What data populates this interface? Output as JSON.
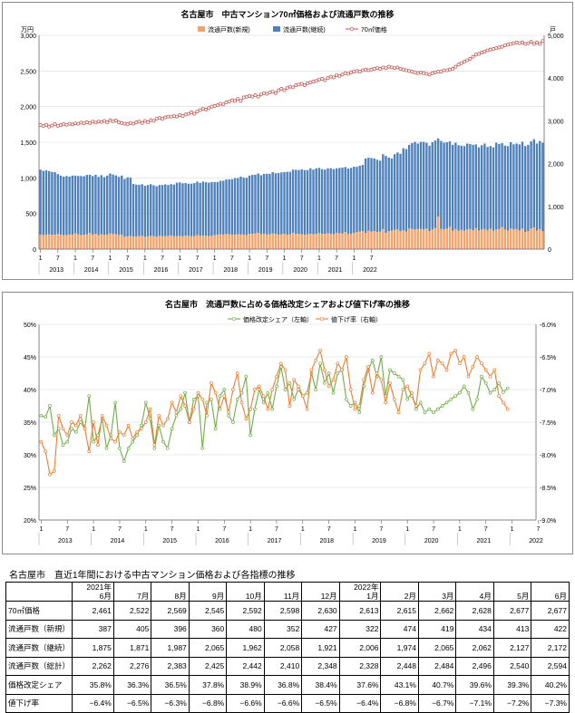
{
  "chart_data": [
    {
      "type": "bar+line",
      "title": "名古屋市　中古マンション70㎡価格および流通戸数の推移",
      "left_axis_unit": "万円",
      "right_axis_unit": "戸",
      "ylim_left": [
        0,
        3000
      ],
      "yticks_left": [
        "0",
        "500",
        "1,000",
        "1,500",
        "2,000",
        "2,500",
        "3,000"
      ],
      "ylim_right": [
        0,
        5000
      ],
      "yticks_right": [
        "0",
        "1,000",
        "2,000",
        "3,000",
        "4,000",
        "5,000"
      ],
      "legend": [
        "流通戸数(新規)",
        "流通戸数(継続)",
        "70㎡価格"
      ],
      "legend_position": "top",
      "x_month_labels": [
        "1",
        "7",
        "1",
        "7",
        "1",
        "7",
        "1",
        "7",
        "1",
        "7",
        "1",
        "7",
        "1",
        "7",
        "1",
        "7",
        "1",
        "7",
        "1",
        "7"
      ],
      "x_year_labels": [
        "2013",
        "2014",
        "2015",
        "2016",
        "2017",
        "2018",
        "2019",
        "2020",
        "2021",
        "2022"
      ],
      "colors": {
        "new": "#f4a46a",
        "continuing": "#4f81bd",
        "price": "#c0504d"
      },
      "series": [
        {
          "name": "流通戸数(新規)",
          "axis": "right",
          "values": [
            340,
            330,
            335,
            345,
            335,
            340,
            355,
            340,
            325,
            330,
            345,
            340,
            370,
            350,
            330,
            335,
            345,
            380,
            340,
            360,
            330,
            350,
            335,
            340,
            370,
            355,
            345,
            330,
            340,
            290,
            300,
            310,
            295,
            300,
            305,
            310,
            290,
            300,
            310,
            305,
            290,
            310,
            300,
            305,
            310,
            320,
            300,
            305,
            310,
            300,
            315,
            310,
            300,
            305,
            330,
            310,
            320,
            315,
            305,
            310,
            330,
            340,
            350,
            340,
            360,
            350,
            335,
            340,
            350,
            345,
            340,
            330,
            360,
            355,
            370,
            380,
            350,
            360,
            345,
            350,
            370,
            355,
            340,
            345,
            360,
            340,
            350,
            380,
            355,
            360,
            345,
            340,
            350,
            360,
            350,
            360,
            380,
            360,
            360,
            370,
            360,
            350,
            380,
            370,
            365,
            400,
            355,
            360,
            380,
            395,
            410,
            420,
            380,
            430,
            410,
            420,
            400,
            410,
            470,
            380,
            420,
            430,
            450,
            460,
            420,
            440,
            410,
            480,
            470,
            460,
            470,
            470,
            460,
            480,
            420,
            460,
            490,
            760,
            470,
            460,
            480,
            520,
            430,
            470,
            430,
            450,
            430,
            460,
            470,
            440,
            490,
            430,
            460,
            470,
            440,
            480,
            430,
            460,
            470,
            520,
            460,
            430,
            480,
            460,
            470,
            440,
            480,
            400,
            420,
            480,
            510,
            430,
            470,
            420
          ]
        },
        {
          "name": "流通戸数(継続)",
          "axis": "right",
          "values": [
            1520,
            1500,
            1510,
            1480,
            1470,
            1460,
            1400,
            1380,
            1370,
            1380,
            1350,
            1380,
            1350,
            1360,
            1380,
            1370,
            1390,
            1360,
            1370,
            1380,
            1360,
            1380,
            1350,
            1380,
            1400,
            1390,
            1380,
            1360,
            1380,
            1350,
            1380,
            1360,
            1230,
            1210,
            1200,
            1210,
            1190,
            1200,
            1210,
            1190,
            1180,
            1190,
            1200,
            1210,
            1190,
            1200,
            1210,
            1250,
            1250,
            1240,
            1230,
            1220,
            1230,
            1240,
            1250,
            1240,
            1260,
            1250,
            1250,
            1260,
            1240,
            1230,
            1250,
            1260,
            1270,
            1280,
            1300,
            1320,
            1310,
            1350,
            1330,
            1340,
            1360,
            1380,
            1370,
            1390,
            1380,
            1400,
            1420,
            1410,
            1430,
            1420,
            1440,
            1450,
            1440,
            1470,
            1460,
            1480,
            1500,
            1490,
            1520,
            1510,
            1500,
            1530,
            1510,
            1530,
            1520,
            1510,
            1500,
            1520,
            1530,
            1520,
            1510,
            1530,
            1540,
            1520,
            1530,
            1540,
            1550,
            1530,
            1540,
            1550,
            1740,
            1710,
            1720,
            1700,
            1690,
            1660,
            1750,
            1800,
            1720,
            1690,
            1770,
            1800,
            1810,
            1920,
            1930,
            1960,
            2010,
            2050,
            2000,
            2040,
            2050,
            2010,
            2000,
            2040,
            2050,
            1830,
            2060,
            2030,
            2020,
            2000,
            2010,
            2020,
            2000,
            1970,
            1980,
            2010,
            1990,
            2000,
            1960,
            1950,
            1970,
            2000,
            1950,
            1930,
            1950,
            2030,
            1990,
            1960,
            1960,
            1980,
            2020,
            1990,
            2000,
            2010,
            2030,
            2010,
            2020,
            2040,
            2060,
            2040,
            2060,
            2070,
            2110,
            2040,
            2080,
            2140
          ]
        },
        {
          "name": "70㎡価格",
          "axis": "left",
          "values": [
            1740,
            1730,
            1745,
            1720,
            1735,
            1755,
            1730,
            1740,
            1755,
            1745,
            1760,
            1750,
            1765,
            1760,
            1775,
            1765,
            1780,
            1770,
            1790,
            1775,
            1790,
            1785,
            1800,
            1780,
            1810,
            1795,
            1805,
            1780,
            1770,
            1760,
            1755,
            1770,
            1760,
            1780,
            1790,
            1770,
            1800,
            1780,
            1810,
            1800,
            1830,
            1840,
            1830,
            1850,
            1860,
            1860,
            1870,
            1860,
            1880,
            1870,
            1890,
            1900,
            1920,
            1900,
            1930,
            1950,
            1970,
            1960,
            1980,
            2000,
            2010,
            2020,
            2040,
            2030,
            2060,
            2070,
            2090,
            2080,
            2110,
            2080,
            2130,
            2140,
            2150,
            2140,
            2160,
            2140,
            2170,
            2190,
            2180,
            2200,
            2210,
            2190,
            2230,
            2250,
            2230,
            2260,
            2280,
            2270,
            2300,
            2310,
            2320,
            2300,
            2330,
            2340,
            2350,
            2360,
            2380,
            2390,
            2370,
            2400,
            2420,
            2410,
            2440,
            2430,
            2450,
            2470,
            2460,
            2480,
            2490,
            2500,
            2490,
            2510,
            2520,
            2510,
            2520,
            2530,
            2540,
            2530,
            2550,
            2540,
            2560,
            2550,
            2540,
            2550,
            2530,
            2520,
            2510,
            2500,
            2490,
            2480,
            2470,
            2480,
            2470,
            2460,
            2450,
            2470,
            2480,
            2490,
            2490,
            2510,
            2510,
            2520,
            2530,
            2560,
            2590,
            2610,
            2630,
            2650,
            2670,
            2700,
            2730,
            2740,
            2760,
            2770,
            2790,
            2800,
            2810,
            2820,
            2830,
            2840,
            2860,
            2870,
            2880,
            2890,
            2900,
            2890,
            2900,
            2880,
            2890,
            2910,
            2880,
            2900,
            2880,
            2920
          ]
        }
      ]
    },
    {
      "type": "line",
      "title": "名古屋市　流通戸数に占める価格改定シェアおよび値下げ率の推移",
      "ylim_left": [
        20,
        50
      ],
      "yticks_left": [
        "20%",
        "25%",
        "30%",
        "35%",
        "40%",
        "45%",
        "50%"
      ],
      "ylim_right": [
        -9.0,
        -6.0
      ],
      "yticks_right": [
        "-9.0%",
        "-8.5%",
        "-8.0%",
        "-7.5%",
        "-7.0%",
        "-6.5%",
        "-6.0%"
      ],
      "legend": [
        "価格改定シェア（左軸）",
        "値下げ率（右軸）"
      ],
      "legend_position": "top",
      "x_month_labels": [
        "1",
        "7",
        "1",
        "7",
        "1",
        "7",
        "1",
        "7",
        "1",
        "7",
        "1",
        "7",
        "1",
        "7",
        "1",
        "7",
        "1",
        "7",
        "1",
        "7"
      ],
      "x_year_labels": [
        "2013",
        "2014",
        "2015",
        "2016",
        "2017",
        "2018",
        "2019",
        "2020",
        "2021",
        "2022"
      ],
      "colors": {
        "share": "#70ad47",
        "cut": "#ed7d31"
      },
      "series": [
        {
          "name": "価格改定シェア（左軸）",
          "axis": "left",
          "values": [
            36.0,
            35.8,
            37.5,
            33.0,
            34.0,
            31.5,
            32.0,
            34.0,
            33.5,
            35.0,
            34.0,
            39.0,
            32.0,
            33.0,
            35.5,
            31.0,
            33.0,
            38.0,
            31.0,
            29.0,
            31.0,
            32.0,
            33.0,
            34.5,
            38.0,
            35.5,
            31.0,
            34.5,
            32.0,
            31.0,
            34.0,
            36.0,
            37.0,
            39.5,
            35.0,
            38.5,
            39.0,
            31.0,
            38.0,
            38.5,
            34.0,
            39.0,
            40.0,
            36.0,
            35.0,
            38.5,
            39.5,
            42.0,
            33.0,
            37.0,
            40.0,
            38.0,
            39.5,
            37.0,
            40.5,
            43.5,
            40.0,
            41.0,
            38.5,
            40.0,
            39.0,
            39.5,
            42.5,
            40.0,
            44.0,
            41.0,
            42.5,
            39.5,
            42.5,
            43.0,
            38.5,
            37.5,
            38.0,
            36.5,
            40.5,
            43.0,
            44.5,
            42.0,
            45.0,
            39.0,
            43.0,
            42.5,
            42.0,
            41.5,
            38.5,
            39.5,
            37.0,
            38.0,
            36.5,
            37.0,
            36.5,
            37.0,
            37.5,
            38.0,
            38.5,
            39.0,
            39.5,
            40.5,
            39.5,
            37.0,
            38.5,
            42.0,
            41.0,
            39.5,
            40.0,
            41.0,
            39.6,
            40.2
          ]
        },
        {
          "name": "値下げ率（右軸）",
          "axis": "right",
          "values": [
            -7.8,
            -7.95,
            -8.3,
            -8.25,
            -7.4,
            -7.6,
            -7.7,
            -7.5,
            -7.55,
            -7.4,
            -7.6,
            -7.95,
            -7.5,
            -7.85,
            -7.4,
            -7.55,
            -7.75,
            -7.8,
            -7.65,
            -7.7,
            -7.55,
            -7.75,
            -7.65,
            -7.6,
            -7.5,
            -7.3,
            -7.85,
            -7.4,
            -7.55,
            -7.45,
            -7.2,
            -7.35,
            -7.1,
            -7.25,
            -7.5,
            -7.3,
            -7.05,
            -7.15,
            -7.4,
            -6.9,
            -7.05,
            -7.3,
            -7.1,
            -7.35,
            -7.0,
            -6.75,
            -7.2,
            -7.45,
            -7.3,
            -7.0,
            -6.95,
            -7.1,
            -7.3,
            -7.0,
            -6.8,
            -6.6,
            -6.7,
            -7.25,
            -6.85,
            -6.95,
            -7.1,
            -7.3,
            -6.7,
            -6.55,
            -6.4,
            -6.7,
            -6.95,
            -6.85,
            -6.6,
            -6.7,
            -6.5,
            -7.0,
            -7.3,
            -7.25,
            -6.85,
            -6.65,
            -7.05,
            -6.75,
            -6.85,
            -7.2,
            -6.9,
            -7.15,
            -7.35,
            -7.0,
            -6.95,
            -7.1,
            -7.25,
            -6.7,
            -6.6,
            -6.45,
            -6.8,
            -6.55,
            -6.6,
            -6.7,
            -6.45,
            -6.4,
            -6.6,
            -6.5,
            -6.8,
            -6.65,
            -6.5,
            -6.6,
            -6.7,
            -6.8,
            -6.7,
            -7.1,
            -7.2,
            -7.3
          ]
        }
      ]
    }
  ],
  "table": {
    "title": "名古屋市　直近1年間における中古マンション価格および各指標の推移",
    "year_labels": [
      "2021年",
      "",
      "",
      "",
      "",
      "",
      "",
      "2022年",
      "",
      "",
      "",
      "",
      ""
    ],
    "months": [
      "6月",
      "7月",
      "8月",
      "9月",
      "10月",
      "11月",
      "12月",
      "1月",
      "2月",
      "3月",
      "4月",
      "5月",
      "6月"
    ],
    "rows": [
      {
        "label": "70㎡価格",
        "values": [
          "2,461",
          "2,522",
          "2,569",
          "2,545",
          "2,592",
          "2,598",
          "2,630",
          "2,613",
          "2,615",
          "2,662",
          "2,628",
          "2,677",
          "2,677"
        ]
      },
      {
        "label": "流通戸数（新規）",
        "values": [
          "387",
          "405",
          "396",
          "360",
          "480",
          "352",
          "427",
          "322",
          "474",
          "419",
          "434",
          "413",
          "422"
        ]
      },
      {
        "label": "流通戸数（継続）",
        "values": [
          "1,875",
          "1,871",
          "1,987",
          "2,065",
          "1,962",
          "2,058",
          "1,921",
          "2,006",
          "1,974",
          "2,065",
          "2,062",
          "2,127",
          "2,172"
        ]
      },
      {
        "label": "流通戸数（総計）",
        "values": [
          "2,262",
          "2,276",
          "2,383",
          "2,425",
          "2,442",
          "2,410",
          "2,348",
          "2,328",
          "2,448",
          "2,484",
          "2,496",
          "2,540",
          "2,594"
        ]
      },
      {
        "label": "価格改定シェア",
        "values": [
          "35.8%",
          "36.3%",
          "36.5%",
          "37.8%",
          "38.9%",
          "36.8%",
          "38.4%",
          "37.6%",
          "43.1%",
          "40.7%",
          "39.6%",
          "39.3%",
          "40.2%"
        ]
      },
      {
        "label": "値下げ率",
        "values": [
          "−6.4%",
          "−6.5%",
          "−6.3%",
          "−6.8%",
          "−6.6%",
          "−6.6%",
          "−6.5%",
          "−6.4%",
          "−6.8%",
          "−6.7%",
          "−7.1%",
          "−7.2%",
          "−7.3%"
        ]
      }
    ]
  }
}
